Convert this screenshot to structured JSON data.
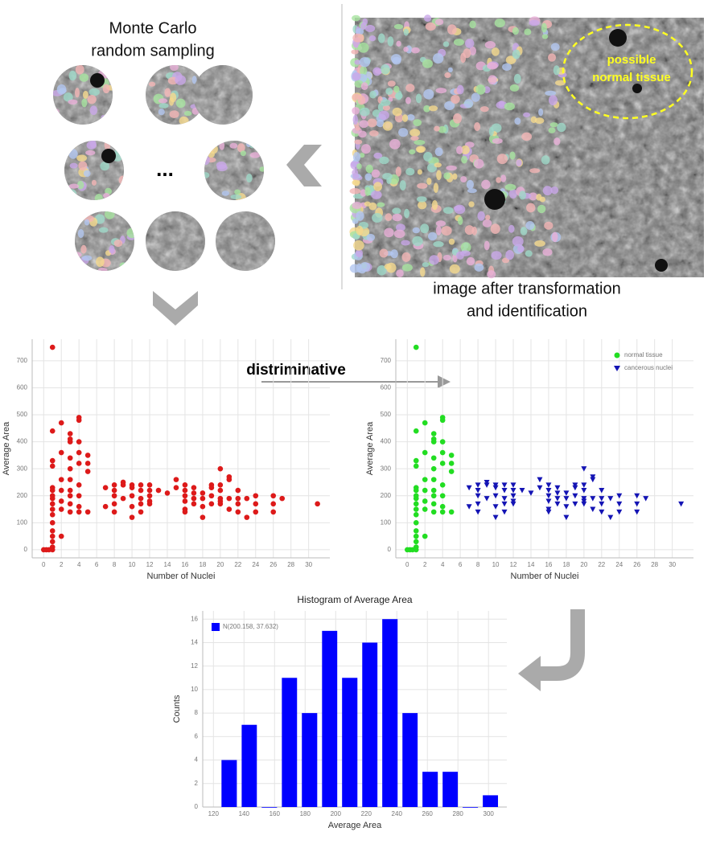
{
  "labels": {
    "sampling": [
      "Monte Carlo",
      "random sampling"
    ],
    "ellipsis": "...",
    "normal_region": [
      "possible",
      "normal tissue"
    ],
    "transformed": [
      "image after transformation",
      "and identification"
    ],
    "arrow": "distriminative"
  },
  "chart_data": [
    {
      "type": "scatter",
      "xlabel": "Number of Nuclei",
      "ylabel": "Average Area",
      "xlim": [
        -1.3,
        32.4
      ],
      "ylim": [
        -30,
        780
      ],
      "xticks": [
        0,
        2,
        4,
        6,
        8,
        10,
        12,
        14,
        16,
        18,
        20,
        22,
        24,
        26,
        28,
        30
      ],
      "yticks": [
        0,
        100,
        200,
        300,
        400,
        500,
        600,
        700
      ],
      "grid": true,
      "series": [
        {
          "color": "#dd1a1a",
          "marker": "circle",
          "x": [
            0,
            0.3,
            0.6,
            1,
            1,
            1,
            1,
            1,
            1,
            1,
            1,
            1,
            1,
            1,
            1,
            1,
            1,
            1,
            1,
            1,
            2,
            2,
            2,
            2,
            2,
            2,
            2,
            3,
            3,
            3,
            3,
            3,
            3,
            3,
            3,
            3,
            3,
            4,
            4,
            4,
            4,
            4,
            4,
            4,
            4,
            4,
            5,
            5,
            5,
            5,
            7,
            7,
            8,
            8,
            8,
            8,
            8,
            9,
            9,
            9,
            10,
            10,
            10,
            10,
            10,
            11,
            11,
            11,
            11,
            11,
            12,
            12,
            12,
            12,
            12,
            13,
            14,
            15,
            15,
            16,
            16,
            16,
            16,
            16,
            16,
            17,
            17,
            17,
            17,
            18,
            18,
            18,
            18,
            19,
            19,
            19,
            19,
            20,
            20,
            20,
            20,
            20,
            20,
            21,
            21,
            21,
            21,
            22,
            22,
            22,
            22,
            23,
            23,
            24,
            24,
            24,
            26,
            26,
            26,
            27,
            31
          ],
          "values": [
            0,
            0,
            0,
            0,
            750,
            440,
            330,
            310,
            230,
            220,
            200,
            190,
            170,
            150,
            130,
            100,
            70,
            50,
            30,
            10,
            470,
            360,
            260,
            220,
            180,
            150,
            50,
            430,
            410,
            400,
            340,
            300,
            260,
            220,
            200,
            170,
            140,
            490,
            480,
            400,
            360,
            320,
            240,
            200,
            160,
            140,
            350,
            320,
            290,
            140,
            230,
            160,
            240,
            220,
            200,
            170,
            140,
            250,
            240,
            190,
            240,
            230,
            200,
            160,
            120,
            240,
            220,
            190,
            170,
            140,
            240,
            220,
            200,
            180,
            170,
            220,
            210,
            260,
            230,
            240,
            220,
            200,
            180,
            150,
            140,
            230,
            210,
            190,
            170,
            210,
            190,
            160,
            120,
            240,
            230,
            200,
            170,
            300,
            240,
            220,
            190,
            180,
            170,
            270,
            260,
            190,
            150,
            220,
            190,
            170,
            140,
            190,
            120,
            200,
            170,
            140,
            200,
            170,
            140,
            190,
            170
          ]
        }
      ]
    },
    {
      "type": "scatter",
      "xlabel": "Number of Nuclei",
      "ylabel": "Average Area",
      "xlim": [
        -1.3,
        32.4
      ],
      "ylim": [
        -30,
        780
      ],
      "xticks": [
        0,
        2,
        4,
        6,
        8,
        10,
        12,
        14,
        16,
        18,
        20,
        22,
        24,
        26,
        28,
        30
      ],
      "yticks": [
        0,
        100,
        200,
        300,
        400,
        500,
        600,
        700
      ],
      "grid": true,
      "legend": "upper right",
      "series": [
        {
          "name": "normal tissue",
          "color": "#22dd22",
          "marker": "circle",
          "x": [
            0,
            0.3,
            0.6,
            1,
            1,
            1,
            1,
            1,
            1,
            1,
            1,
            1,
            1,
            1,
            1,
            1,
            1,
            1,
            1,
            1,
            2,
            2,
            2,
            2,
            2,
            2,
            2,
            3,
            3,
            3,
            3,
            3,
            3,
            3,
            3,
            3,
            3,
            4,
            4,
            4,
            4,
            4,
            4,
            4,
            4,
            4,
            5,
            5,
            5,
            5
          ],
          "values": [
            0,
            0,
            0,
            0,
            750,
            440,
            330,
            310,
            230,
            220,
            200,
            190,
            170,
            150,
            130,
            100,
            70,
            50,
            30,
            10,
            470,
            360,
            260,
            220,
            180,
            150,
            50,
            430,
            410,
            400,
            340,
            300,
            260,
            220,
            200,
            170,
            140,
            490,
            480,
            400,
            360,
            320,
            240,
            200,
            160,
            140,
            350,
            320,
            290,
            140
          ]
        },
        {
          "name": "cancerous nuclei",
          "color": "#1414b4",
          "marker": "triangle-down",
          "x": [
            7,
            7,
            8,
            8,
            8,
            8,
            8,
            9,
            9,
            9,
            10,
            10,
            10,
            10,
            10,
            11,
            11,
            11,
            11,
            11,
            12,
            12,
            12,
            12,
            12,
            13,
            14,
            15,
            15,
            16,
            16,
            16,
            16,
            16,
            16,
            17,
            17,
            17,
            17,
            18,
            18,
            18,
            18,
            19,
            19,
            19,
            19,
            20,
            20,
            20,
            20,
            20,
            20,
            21,
            21,
            21,
            21,
            22,
            22,
            22,
            22,
            23,
            23,
            24,
            24,
            24,
            26,
            26,
            26,
            27,
            31
          ],
          "values": [
            230,
            160,
            240,
            220,
            200,
            170,
            140,
            250,
            240,
            190,
            240,
            230,
            200,
            160,
            120,
            240,
            220,
            190,
            170,
            140,
            240,
            220,
            200,
            180,
            170,
            220,
            210,
            260,
            230,
            240,
            220,
            200,
            180,
            150,
            140,
            230,
            210,
            190,
            170,
            210,
            190,
            160,
            120,
            240,
            230,
            200,
            170,
            300,
            240,
            220,
            190,
            180,
            170,
            270,
            260,
            190,
            150,
            220,
            190,
            170,
            140,
            190,
            120,
            200,
            170,
            140,
            200,
            170,
            140,
            190,
            170
          ]
        }
      ]
    },
    {
      "type": "histogram",
      "title": "Histogram of Average Area",
      "xlabel": "Average Area",
      "ylabel": "Counts",
      "xlim": [
        113,
        312
      ],
      "ylim": [
        0,
        16.7
      ],
      "xticks": [
        120,
        140,
        160,
        180,
        200,
        220,
        240,
        260,
        280,
        300
      ],
      "yticks": [
        0,
        2,
        4,
        6,
        8,
        10,
        12,
        14,
        16
      ],
      "grid": true,
      "legend": "upper left",
      "bins": [
        123.7,
        136.9,
        150,
        163.2,
        176.3,
        189.5,
        202.6,
        215.8,
        228.9,
        242.1,
        255.2,
        268.4,
        281.5,
        294.7,
        307.8
      ],
      "series": [
        {
          "name": "N(200.158, 37.632)",
          "color": "#0000ff",
          "values": [
            4,
            7,
            0,
            11,
            8,
            15,
            11,
            14,
            16,
            8,
            3,
            3,
            0,
            1
          ]
        }
      ]
    }
  ]
}
